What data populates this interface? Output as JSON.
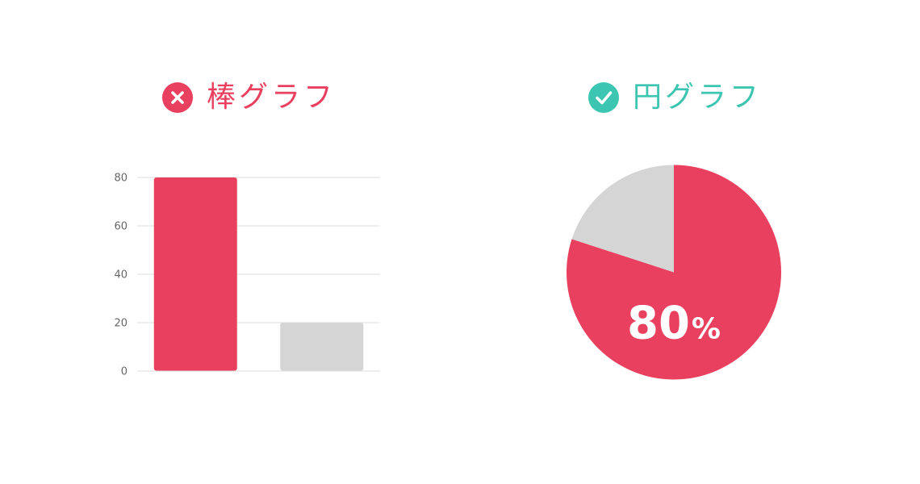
{
  "colors": {
    "accent_red": "#E9405F",
    "accent_green": "#3CC5B0",
    "neutral_gray": "#D5D5D5",
    "grid": "#DDDDDD",
    "tick_text": "#666666"
  },
  "bar_panel": {
    "title": "棒グラフ",
    "status_icon": "close-icon"
  },
  "pie_panel": {
    "title": "円グラフ",
    "status_icon": "check-icon",
    "label_value": "80",
    "label_unit": "%"
  },
  "chart_data": [
    {
      "type": "bar",
      "categories": [
        "",
        ""
      ],
      "values": [
        80,
        20
      ],
      "colors": [
        "#E9405F",
        "#D5D5D5"
      ],
      "ylim": [
        0,
        80
      ],
      "yticks": [
        "0",
        "20",
        "40",
        "60",
        "80"
      ],
      "grid": true,
      "title": "棒グラフ",
      "xlabel": "",
      "ylabel": ""
    },
    {
      "type": "pie",
      "labels": [
        "",
        ""
      ],
      "values": [
        80,
        20
      ],
      "colors": [
        "#E9405F",
        "#D5D5D5"
      ],
      "title": "円グラフ",
      "center_label": "80%"
    }
  ]
}
